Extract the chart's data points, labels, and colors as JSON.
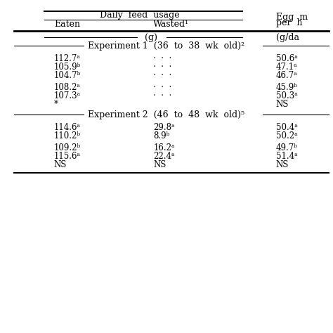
{
  "bg_color": "#ffffff",
  "col1_header": "Daily  feed  usage",
  "col1a_header": "Eaten",
  "col1b_header": "Wasted¹",
  "col2_header_line1": "Egg  m",
  "col2_header_line2": "per  h",
  "col2_unit": "(g/da",
  "unit_row": "(g)",
  "exp1_label": "Experiment 1  (36  to  38  wk  old)²",
  "exp2_label": "Experiment 2  (46  to  48  wk  old)⁵",
  "rows": [
    {
      "eaten": "112.7ᵃ",
      "wasted": "·  ·  ·",
      "egg": "50.6ᵃ"
    },
    {
      "eaten": "105.9ᵇ",
      "wasted": "·  ·  ·",
      "egg": "47.1ᵃ"
    },
    {
      "eaten": "104.7ᵇ",
      "wasted": "·  ·  ·",
      "egg": "46.7ᵃ"
    },
    {
      "eaten": "",
      "wasted": "",
      "egg": ""
    },
    {
      "eaten": "108.2ᵃ",
      "wasted": "·  ·  ·",
      "egg": "45.9ᵇ"
    },
    {
      "eaten": "107.3ᵃ",
      "wasted": "·  ·  ·",
      "egg": "50.3ᵃ"
    },
    {
      "eaten": "*",
      "wasted": "",
      "egg": "NS"
    },
    {
      "eaten": "",
      "wasted": "",
      "egg": ""
    },
    {
      "eaten": "114.6ᵃ",
      "wasted": "29.8ᵃ",
      "egg": "50.4ᵃ"
    },
    {
      "eaten": "110.2ᵇ",
      "wasted": "8.9ᵇ",
      "egg": "50.2ᵃ"
    },
    {
      "eaten": "",
      "wasted": "",
      "egg": ""
    },
    {
      "eaten": "109.2ᵇ",
      "wasted": "16.2ᵃ",
      "egg": "49.7ᵇ"
    },
    {
      "eaten": "115.6ᵃ",
      "wasted": "22.4ᵃ",
      "egg": "51.4ᵃ"
    },
    {
      "eaten": "NS",
      "wasted": "NS",
      "egg": "NS"
    }
  ]
}
